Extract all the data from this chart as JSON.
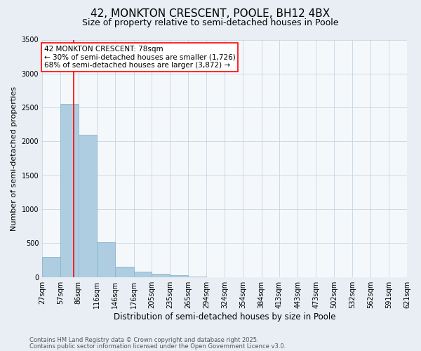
{
  "title": "42, MONKTON CRESCENT, POOLE, BH12 4BX",
  "subtitle": "Size of property relative to semi-detached houses in Poole",
  "xlabel": "Distribution of semi-detached houses by size in Poole",
  "ylabel": "Number of semi-detached properties",
  "bar_values": [
    300,
    2550,
    2100,
    510,
    150,
    80,
    50,
    30,
    5,
    0,
    0,
    0,
    0,
    0,
    0,
    0,
    0,
    0,
    0,
    0
  ],
  "bin_edges": [
    27,
    57,
    86,
    116,
    146,
    176,
    205,
    235,
    265,
    294,
    324,
    354,
    384,
    413,
    443,
    473,
    502,
    532,
    562,
    591,
    621
  ],
  "bar_color": "#aecde0",
  "bar_edge_color": "#8ab5cc",
  "property_line_x": 78,
  "annotation_line1": "42 MONKTON CRESCENT: 78sqm",
  "annotation_line2": "← 30% of semi-detached houses are smaller (1,726)",
  "annotation_line3": "68% of semi-detached houses are larger (3,872) →",
  "ylim": [
    0,
    3500
  ],
  "yticks": [
    0,
    500,
    1000,
    1500,
    2000,
    2500,
    3000,
    3500
  ],
  "footer1": "Contains HM Land Registry data © Crown copyright and database right 2025.",
  "footer2": "Contains public sector information licensed under the Open Government Licence v3.0.",
  "background_color": "#e8eef4",
  "plot_background": "#f5f8fb",
  "grid_color": "#c5d5e5",
  "title_fontsize": 11,
  "subtitle_fontsize": 9,
  "annotation_fontsize": 7.5,
  "ylabel_fontsize": 8,
  "xlabel_fontsize": 8.5,
  "tick_fontsize": 7,
  "footer_fontsize": 6
}
